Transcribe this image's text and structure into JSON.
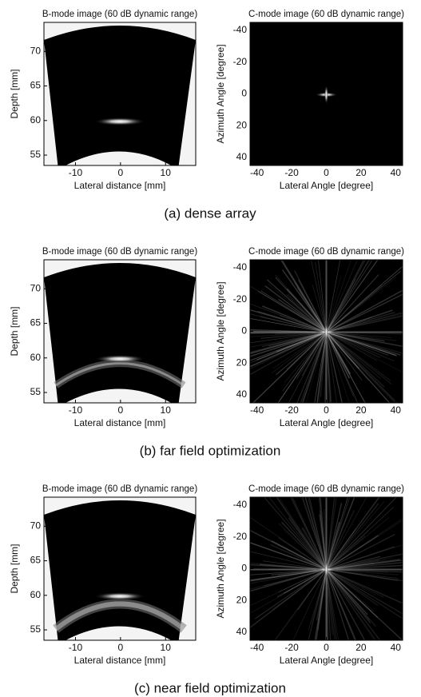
{
  "panels": [
    {
      "caption": "(a)  dense array",
      "plots": [
        {
          "title": "B-mode image (60 dB dynamic range)",
          "xlabel": "Lateral distance [mm]",
          "ylabel": "Depth [mm]",
          "xlim": [
            -17,
            16.7
          ],
          "ylim": [
            53.5,
            74.2
          ],
          "xticks": [
            -10,
            0,
            10
          ],
          "yticks": [
            55,
            60,
            65,
            70
          ]
        },
        {
          "title": "C-mode image (60 dB dynamic range)",
          "xlabel": "Lateral Angle [degree]",
          "ylabel": "Azimuth Angle [degree]",
          "xlim": [
            -44,
            44
          ],
          "ylim": [
            45,
            -45
          ],
          "xticks": [
            -40,
            -20,
            0,
            20,
            40
          ],
          "yticks": [
            -40,
            -20,
            0,
            20,
            40
          ]
        }
      ]
    },
    {
      "caption": "(b)  far  field  optimization",
      "plots": [
        {
          "title": "B-mode image (60 dB dynamic range)",
          "xlabel": "Lateral distance [mm]",
          "ylabel": "Depth [mm]",
          "xlim": [
            -17,
            16.7
          ],
          "ylim": [
            53.5,
            74.2
          ],
          "xticks": [
            -10,
            0,
            10
          ],
          "yticks": [
            55,
            60,
            65,
            70
          ]
        },
        {
          "title": "C-mode image (60 dB dynamic range)",
          "xlabel": "Lateral Angle [degree]",
          "ylabel": "Azimuth Angle [degree]",
          "xlim": [
            -44,
            44
          ],
          "ylim": [
            45,
            -45
          ],
          "xticks": [
            -40,
            -20,
            0,
            20,
            40
          ],
          "yticks": [
            -40,
            -20,
            0,
            20,
            40
          ]
        }
      ]
    },
    {
      "caption": "(c)  near  field  optimization",
      "plots": [
        {
          "title": "B-mode image (60 dB dynamic range)",
          "xlabel": "Lateral distance [mm]",
          "ylabel": "Depth [mm]",
          "xlim": [
            -17,
            16.7
          ],
          "ylim": [
            53.5,
            74.2
          ],
          "xticks": [
            -10,
            0,
            10
          ],
          "yticks": [
            55,
            60,
            65,
            70
          ]
        },
        {
          "title": "C-mode image (60 dB dynamic range)",
          "xlabel": "Lateral Angle [degree]",
          "ylabel": "Azimuth Angle [degree]",
          "xlim": [
            -44,
            44
          ],
          "ylim": [
            45,
            -45
          ],
          "xticks": [
            -40,
            -20,
            0,
            20,
            40
          ],
          "yticks": [
            -40,
            -20,
            0,
            20,
            40
          ]
        }
      ]
    }
  ]
}
